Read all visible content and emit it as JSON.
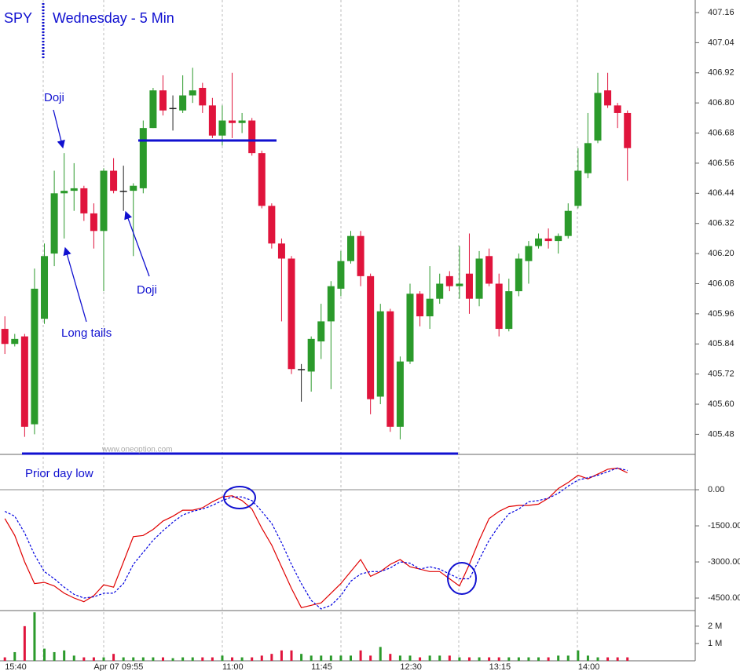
{
  "chart_data": {
    "type": "candlestick",
    "title": "SPY",
    "subtitle": "Wednesday - 5 Min",
    "annotations": [
      "Doji",
      "Doji",
      "Long tails",
      "Prior day low"
    ],
    "watermark": "www.oneoption.com",
    "up_color": "#2b9a2b",
    "down_color": "#e0143c",
    "categories": [
      "15:40",
      null,
      null,
      null,
      null,
      null,
      null,
      null,
      null,
      "Apr 07 09:55",
      null,
      null,
      null,
      null,
      null,
      null,
      null,
      null,
      null,
      null,
      null,
      null,
      "11:00",
      null,
      null,
      null,
      null,
      null,
      null,
      null,
      null,
      "11:45",
      null,
      null,
      null,
      null,
      null,
      null,
      null,
      null,
      "12:30",
      null,
      null,
      null,
      null,
      null,
      null,
      null,
      null,
      "13:15",
      null,
      null,
      null,
      null,
      null,
      null,
      null,
      null,
      "14:00",
      null,
      null,
      null,
      null,
      null
    ],
    "open": [
      405.9,
      405.84,
      405.87,
      405.52,
      405.94,
      406.2,
      406.44,
      406.45,
      406.46,
      406.36,
      406.29,
      406.53,
      406.45,
      406.45,
      406.46,
      406.7,
      406.85,
      406.78,
      406.77,
      406.83,
      406.86,
      406.79,
      406.67,
      406.73,
      406.72,
      406.73,
      406.6,
      406.39,
      406.24,
      406.18,
      405.74,
      405.73,
      405.85,
      405.93,
      406.06,
      406.17,
      406.27,
      406.11,
      405.63,
      405.97,
      405.51,
      405.77,
      406.04,
      405.95,
      406.02,
      406.11,
      406.07,
      406.12,
      406.02,
      406.19,
      406.08,
      405.9,
      406.05,
      406.17,
      406.23,
      406.26,
      406.25,
      406.27,
      406.39,
      406.52,
      406.65,
      406.85,
      406.79,
      406.76
    ],
    "high": [
      405.95,
      405.88,
      405.88,
      406.14,
      406.24,
      406.53,
      406.6,
      406.56,
      406.47,
      406.4,
      406.54,
      406.58,
      406.55,
      406.48,
      406.73,
      406.86,
      406.91,
      406.83,
      406.91,
      406.94,
      406.88,
      406.82,
      406.79,
      406.92,
      406.76,
      406.74,
      406.61,
      406.4,
      406.26,
      406.19,
      405.76,
      405.87,
      406.0,
      406.09,
      406.21,
      406.29,
      406.29,
      406.12,
      406.0,
      405.98,
      405.79,
      406.08,
      406.05,
      406.15,
      406.12,
      406.13,
      406.23,
      406.28,
      406.21,
      406.22,
      406.12,
      406.1,
      406.2,
      406.25,
      406.28,
      406.3,
      406.28,
      406.4,
      406.62,
      406.76,
      406.92,
      406.92,
      406.8,
      406.77
    ],
    "low": [
      405.8,
      405.83,
      405.47,
      405.48,
      405.92,
      406.15,
      406.26,
      406.37,
      406.33,
      406.22,
      406.05,
      406.44,
      406.37,
      406.19,
      406.44,
      406.7,
      406.75,
      406.69,
      406.76,
      406.8,
      406.76,
      406.66,
      406.63,
      406.66,
      406.68,
      406.59,
      406.38,
      406.22,
      405.93,
      405.72,
      405.61,
      405.65,
      405.78,
      405.66,
      406.03,
      406.16,
      406.07,
      405.56,
      405.6,
      405.49,
      405.46,
      405.76,
      405.91,
      405.9,
      406.0,
      406.05,
      406.02,
      405.96,
      405.99,
      406.07,
      405.87,
      405.89,
      406.03,
      406.08,
      406.22,
      406.22,
      406.2,
      406.26,
      406.38,
      406.5,
      406.64,
      406.78,
      406.7,
      406.49
    ],
    "close": [
      405.84,
      405.86,
      405.51,
      406.06,
      406.19,
      406.44,
      406.45,
      406.46,
      406.36,
      406.29,
      406.53,
      406.45,
      406.45,
      406.47,
      406.7,
      406.85,
      406.77,
      406.78,
      406.83,
      406.85,
      406.79,
      406.67,
      406.73,
      406.72,
      406.73,
      406.6,
      406.39,
      406.24,
      406.18,
      405.74,
      405.74,
      405.86,
      405.93,
      406.07,
      406.17,
      406.27,
      406.11,
      405.62,
      405.97,
      405.51,
      405.77,
      406.04,
      405.95,
      406.02,
      406.08,
      406.07,
      406.08,
      406.02,
      406.18,
      406.08,
      405.9,
      406.05,
      406.18,
      406.23,
      406.26,
      406.25,
      406.27,
      406.37,
      406.53,
      406.64,
      406.84,
      406.79,
      406.76,
      406.62
    ],
    "ylim": [
      405.4,
      407.21
    ],
    "yticks": [
      407.16,
      407.04,
      406.92,
      {
        "value": 406.8,
        "label": "406.80"
      },
      406.68,
      406.56,
      406.44,
      406.32,
      {
        "value": 406.2,
        "label": "406.20"
      },
      406.08,
      405.96,
      405.84,
      405.72,
      {
        "value": 405.6,
        "label": "405.60"
      },
      405.48
    ],
    "indicator": {
      "type": "line",
      "ylim": [
        -5020,
        1435
      ],
      "yticks": [
        {
          "value": 0,
          "label": "0.00"
        },
        {
          "value": -1500,
          "label": "-1500.00"
        },
        {
          "value": -3000,
          "label": "-3000.00"
        },
        {
          "value": -4500,
          "label": "-4500.00"
        }
      ],
      "series": [
        {
          "color": "#e00000",
          "style": "solid",
          "values": [
            -1200,
            -1900,
            -3000,
            -3900,
            -3850,
            -4000,
            -4300,
            -4500,
            -4650,
            -4400,
            -3950,
            -4050,
            -3000,
            -1950,
            -1900,
            -1650,
            -1300,
            -1100,
            -850,
            -850,
            -750,
            -500,
            -300,
            -250,
            -450,
            -800,
            -1600,
            -2300,
            -3200,
            -4100,
            -4900,
            -4800,
            -4700,
            -4300,
            -3900,
            -3400,
            -2900,
            -3600,
            -3400,
            -3100,
            -2900,
            -3200,
            -3300,
            -3400,
            -3400,
            -3700,
            -4000,
            -3100,
            -2100,
            -1200,
            -900,
            -700,
            -650,
            -650,
            -600,
            -350,
            50,
            300,
            600,
            450,
            650,
            850,
            900,
            700
          ]
        },
        {
          "color": "#0000e0",
          "style": "dashed",
          "values": [
            -900,
            -1100,
            -1800,
            -2700,
            -3400,
            -3700,
            -4050,
            -4350,
            -4500,
            -4450,
            -4300,
            -4300,
            -3900,
            -3100,
            -2600,
            -2100,
            -1700,
            -1350,
            -1050,
            -900,
            -800,
            -650,
            -450,
            -300,
            -300,
            -450,
            -900,
            -1400,
            -2200,
            -3100,
            -3900,
            -4600,
            -4950,
            -4800,
            -4400,
            -3800,
            -3500,
            -3400,
            -3400,
            -3250,
            -3000,
            -3050,
            -3300,
            -3200,
            -3300,
            -3500,
            -3700,
            -3700,
            -2900,
            -2100,
            -1500,
            -1000,
            -800,
            -500,
            -450,
            -350,
            -150,
            150,
            400,
            500,
            600,
            750,
            900,
            800
          ]
        }
      ]
    },
    "volume": {
      "type": "bar",
      "ylim": [
        0,
        2.9
      ],
      "yticks": [
        {
          "value": 2,
          "label": "2 M"
        },
        {
          "value": 1,
          "label": "1 M"
        }
      ],
      "values": [
        0.2,
        0.5,
        2.0,
        2.8,
        0.7,
        0.5,
        0.6,
        0.3,
        0.2,
        0.2,
        0.2,
        0.4,
        0.2,
        0.2,
        0.2,
        0.2,
        0.2,
        0.15,
        0.2,
        0.2,
        0.2,
        0.2,
        0.3,
        0.2,
        0.2,
        0.2,
        0.3,
        0.4,
        0.6,
        0.6,
        0.4,
        0.3,
        0.3,
        0.3,
        0.3,
        0.3,
        0.6,
        0.3,
        0.8,
        0.4,
        0.3,
        0.3,
        0.2,
        0.3,
        0.3,
        0.3,
        0.2,
        0.2,
        0.2,
        0.2,
        0.2,
        0.2,
        0.2,
        0.2,
        0.2,
        0.2,
        0.3,
        0.3,
        0.6,
        0.3,
        0.2,
        0.2,
        0.2,
        0.2
      ]
    }
  }
}
